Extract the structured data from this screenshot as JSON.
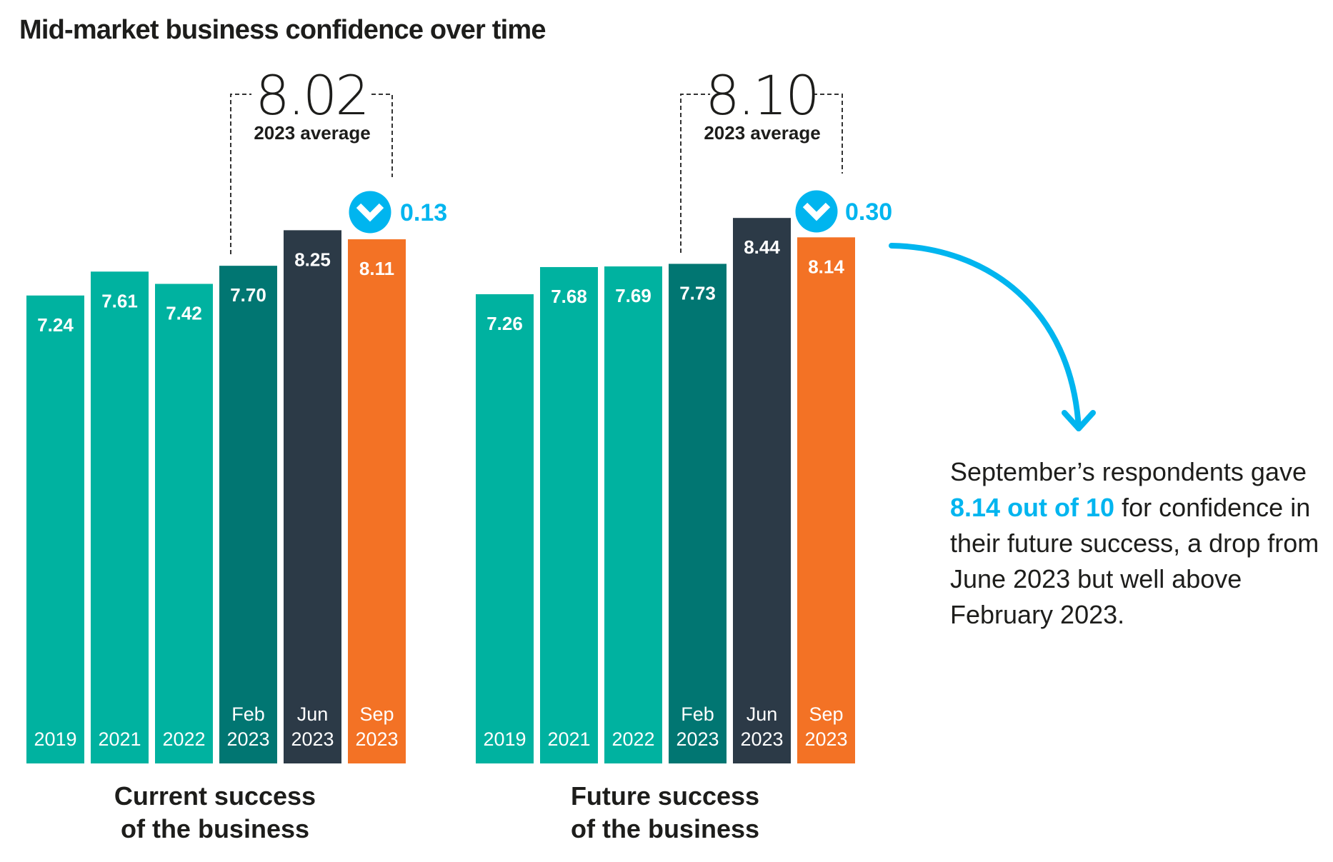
{
  "title": "Mid-market business confidence over time",
  "colors": {
    "teal": "#00b2a0",
    "dark_teal": "#017672",
    "navy": "#2c3a47",
    "orange": "#f37225",
    "accent_blue": "#00b5ef"
  },
  "chart_data": [
    {
      "type": "bar",
      "title": "Current success of the business",
      "title_lines": [
        "Current success",
        "of the business"
      ],
      "categories": [
        {
          "line1": "",
          "line2": "2019"
        },
        {
          "line1": "",
          "line2": "2021"
        },
        {
          "line1": "",
          "line2": "2022"
        },
        {
          "line1": "Feb",
          "line2": "2023"
        },
        {
          "line1": "Jun",
          "line2": "2023"
        },
        {
          "line1": "Sep",
          "line2": "2023"
        }
      ],
      "values": [
        7.24,
        7.61,
        7.42,
        7.7,
        8.25,
        8.11
      ],
      "value_labels": [
        "7.24",
        "7.61",
        "7.42",
        "7.70",
        "8.25",
        "8.11"
      ],
      "bar_colors": [
        "teal",
        "teal",
        "teal",
        "dark_teal",
        "navy",
        "orange"
      ],
      "ylim": [
        0,
        10
      ],
      "grid": false,
      "average": {
        "value": "8.02",
        "label": "2023 average"
      },
      "change": {
        "direction": "down",
        "value": "0.13",
        "icon": "chevron-down-circle-icon"
      }
    },
    {
      "type": "bar",
      "title": "Future success of the business",
      "title_lines": [
        "Future success",
        "of the business"
      ],
      "categories": [
        {
          "line1": "",
          "line2": "2019"
        },
        {
          "line1": "",
          "line2": "2021"
        },
        {
          "line1": "",
          "line2": "2022"
        },
        {
          "line1": "Feb",
          "line2": "2023"
        },
        {
          "line1": "Jun",
          "line2": "2023"
        },
        {
          "line1": "Sep",
          "line2": "2023"
        }
      ],
      "values": [
        7.26,
        7.68,
        7.69,
        7.73,
        8.44,
        8.14
      ],
      "value_labels": [
        "7.26",
        "7.68",
        "7.69",
        "7.73",
        "8.44",
        "8.14"
      ],
      "bar_colors": [
        "teal",
        "teal",
        "teal",
        "dark_teal",
        "navy",
        "orange"
      ],
      "ylim": [
        0,
        10
      ],
      "grid": false,
      "average": {
        "value": "8.10",
        "label": "2023 average"
      },
      "change": {
        "direction": "down",
        "value": "0.30",
        "icon": "chevron-down-circle-icon"
      }
    }
  ],
  "annotation": {
    "before": "September’s respondents gave ",
    "highlight": "8.14 out of 10",
    "after": " for confidence in their future success, a drop from June 2023 but well above February 2023.",
    "arrow_icon": "curved-arrow-down-icon"
  }
}
